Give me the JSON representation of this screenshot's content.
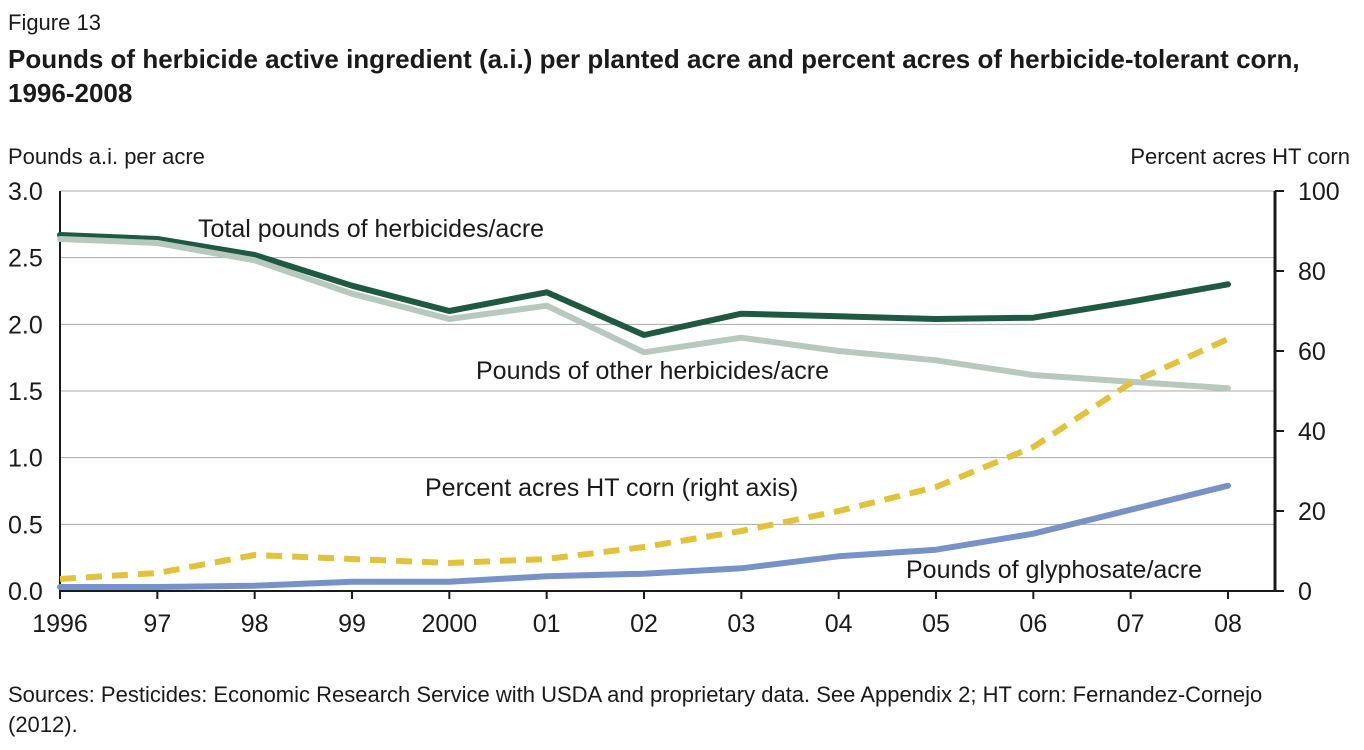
{
  "figure_label": "Figure 13",
  "title": "Pounds of herbicide active ingredient (a.i.) per planted acre and percent acres of herbicide-tolerant corn, 1996-2008",
  "source": "Sources: Pesticides: Economic Research Service with USDA and proprietary data. See Appendix 2; HT corn: Fernandez-Cornejo (2012).",
  "chart_data": {
    "type": "line",
    "x": [
      1996,
      1997,
      1998,
      1999,
      2000,
      2001,
      2002,
      2003,
      2004,
      2005,
      2006,
      2007,
      2008
    ],
    "x_tick_labels": [
      "1996",
      "97",
      "98",
      "99",
      "2000",
      "01",
      "02",
      "03",
      "04",
      "05",
      "06",
      "07",
      "08"
    ],
    "ylabel_left": "Pounds a.i. per acre",
    "ylabel_right": "Percent acres HT corn",
    "ylim_left": [
      0,
      3
    ],
    "ylim_right": [
      0,
      100
    ],
    "yticks_left": [
      "0.0",
      "0.5",
      "1.0",
      "1.5",
      "2.0",
      "2.5",
      "3.0"
    ],
    "yticks_right": [
      "0",
      "20",
      "40",
      "60",
      "80",
      "100"
    ],
    "grid": true,
    "series": [
      {
        "name": "Total pounds of herbicides/acre",
        "axis": "left",
        "color": "#1e5a42",
        "style": "solid",
        "values": [
          2.67,
          2.64,
          2.52,
          2.29,
          2.1,
          2.24,
          1.92,
          2.08,
          2.06,
          2.04,
          2.05,
          2.17,
          2.3
        ]
      },
      {
        "name": "Pounds of other herbicides/acre",
        "axis": "left",
        "color": "#b7c9bf",
        "style": "solid",
        "values": [
          2.64,
          2.61,
          2.48,
          2.23,
          2.04,
          2.14,
          1.79,
          1.9,
          1.8,
          1.73,
          1.62,
          1.57,
          1.52
        ]
      },
      {
        "name": "Percent acres HT corn (right axis)",
        "axis": "right",
        "color": "#e2c23c",
        "style": "dashed",
        "values": [
          3,
          4.5,
          9,
          8,
          7,
          8,
          11,
          15,
          20,
          26,
          36,
          52,
          63
        ]
      },
      {
        "name": "Pounds of glyphosate/acre",
        "axis": "left",
        "color": "#7892c8",
        "style": "solid",
        "values": [
          0.03,
          0.03,
          0.04,
          0.07,
          0.07,
          0.11,
          0.13,
          0.17,
          0.26,
          0.31,
          0.43,
          0.61,
          0.79
        ]
      }
    ]
  }
}
